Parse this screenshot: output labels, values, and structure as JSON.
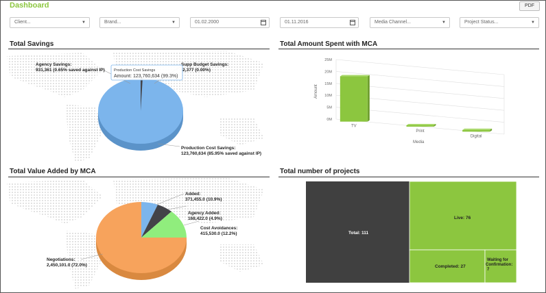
{
  "app": {
    "title": "Dashboard",
    "pdf_label": "PDF"
  },
  "filters": {
    "client": "Client...",
    "brand": "Brand...",
    "date_from": "01.02.2000",
    "date_to": "01.11.2016",
    "media_channel": "Media Channel...",
    "project_status": "Project Status..."
  },
  "sections": {
    "total_savings": "Total Savings",
    "amount_spent": "Total Amount Spent with MCA",
    "value_added": "Total Value Added by MCA",
    "projects": "Total number of projects"
  },
  "savings": {
    "agency_label": "Agency Savings:",
    "agency_value": "931,361 (0.65% saved against IP)",
    "supp_label": "Supp Budget Savings:",
    "supp_value": "-2,377 (0.00%)",
    "production_label": "Production Cost Savings:",
    "production_value": "123,760,634 (85.95% saved against IP)",
    "tooltip_title": "Production Cost Savings",
    "tooltip_value": "Amount: 123,760,634 (99.3%)",
    "colors": {
      "production": "#7cb5ec",
      "agency": "#434348",
      "supp": "#90ed7d"
    }
  },
  "value_added": {
    "added_label": "Added:",
    "added_value": "371,455.0 (10.9%)",
    "agency_label": "Agency Added:",
    "agency_value": "168,422.0 (4.9%)",
    "cost_label": "Cost Avoidances:",
    "cost_value": "415,530.0 (12.2%)",
    "neg_label": "Negotiations:",
    "neg_value": "2,450,101.0 (72.0%)",
    "colors": {
      "added": "#7cb5ec",
      "agency": "#434348",
      "cost": "#90ed7d",
      "negotiations": "#f7a35c"
    }
  },
  "spent": {
    "yticks": [
      "0M",
      "5M",
      "10M",
      "15M",
      "20M",
      "25M"
    ],
    "ylabel": "Amount",
    "xlabel": "Media",
    "categories": [
      "TV",
      "Print",
      "Digital"
    ],
    "color": "#8cc63f"
  },
  "chart_data": [
    {
      "type": "pie",
      "title": "Total Savings",
      "labels": [
        "Agency Savings",
        "Supp Budget Savings",
        "Production Cost Savings"
      ],
      "values": [
        931361,
        -2377,
        123760634
      ]
    },
    {
      "type": "bar",
      "title": "Total Amount Spent with MCA",
      "categories": [
        "TV",
        "Print",
        "Digital"
      ],
      "values": [
        19000000,
        500000,
        700000
      ],
      "xlabel": "Media",
      "ylabel": "Amount",
      "ylim": [
        0,
        25000000
      ]
    },
    {
      "type": "pie",
      "title": "Total Value Added by MCA",
      "labels": [
        "Added",
        "Agency Added",
        "Cost Avoidances",
        "Negotiations"
      ],
      "values": [
        371455.0,
        168422.0,
        415530.0,
        2450101.0
      ]
    },
    {
      "type": "treemap",
      "title": "Total number of projects",
      "labels": [
        "Total",
        "Live",
        "Completed",
        "Waiting for Confirmation"
      ],
      "values": [
        111,
        76,
        27,
        7
      ]
    }
  ],
  "projects": {
    "total_label": "Total: 111",
    "live_label": "Live: 76",
    "completed_label": "Completed: 27",
    "waiting_label_1": "Waiting for",
    "waiting_label_2": "Confirmation:",
    "waiting_label_3": "7",
    "colors": {
      "total": "#404040",
      "status": "#8cc63f"
    }
  }
}
